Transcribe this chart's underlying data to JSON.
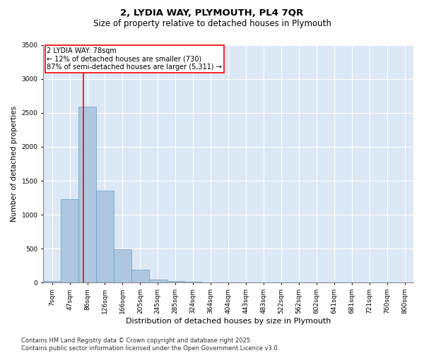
{
  "title": "2, LYDIA WAY, PLYMOUTH, PL4 7QR",
  "subtitle": "Size of property relative to detached houses in Plymouth",
  "xlabel": "Distribution of detached houses by size in Plymouth",
  "ylabel": "Number of detached properties",
  "categories": [
    "7sqm",
    "47sqm",
    "86sqm",
    "126sqm",
    "166sqm",
    "205sqm",
    "245sqm",
    "285sqm",
    "324sqm",
    "364sqm",
    "404sqm",
    "443sqm",
    "483sqm",
    "522sqm",
    "562sqm",
    "602sqm",
    "641sqm",
    "681sqm",
    "721sqm",
    "760sqm",
    "800sqm"
  ],
  "values": [
    30,
    1230,
    2590,
    1360,
    490,
    190,
    50,
    30,
    15,
    0,
    0,
    0,
    0,
    0,
    0,
    0,
    0,
    0,
    0,
    0,
    0
  ],
  "bar_color": "#aec6e0",
  "bar_edge_color": "#6a9fc0",
  "line_color": "red",
  "annotation_box_text": "2 LYDIA WAY: 78sqm\n← 12% of detached houses are smaller (730)\n87% of semi-detached houses are larger (5,311) →",
  "ylim": [
    0,
    3500
  ],
  "yticks": [
    0,
    500,
    1000,
    1500,
    2000,
    2500,
    3000,
    3500
  ],
  "bg_color": "#dce8f5",
  "grid_color": "#ffffff",
  "footer_line1": "Contains HM Land Registry data © Crown copyright and database right 2025.",
  "footer_line2": "Contains public sector information licensed under the Open Government Licence v3.0.",
  "title_fontsize": 9.5,
  "subtitle_fontsize": 8.5,
  "xlabel_fontsize": 8,
  "ylabel_fontsize": 7.5,
  "tick_fontsize": 6.5,
  "annotation_fontsize": 7,
  "footer_fontsize": 6
}
